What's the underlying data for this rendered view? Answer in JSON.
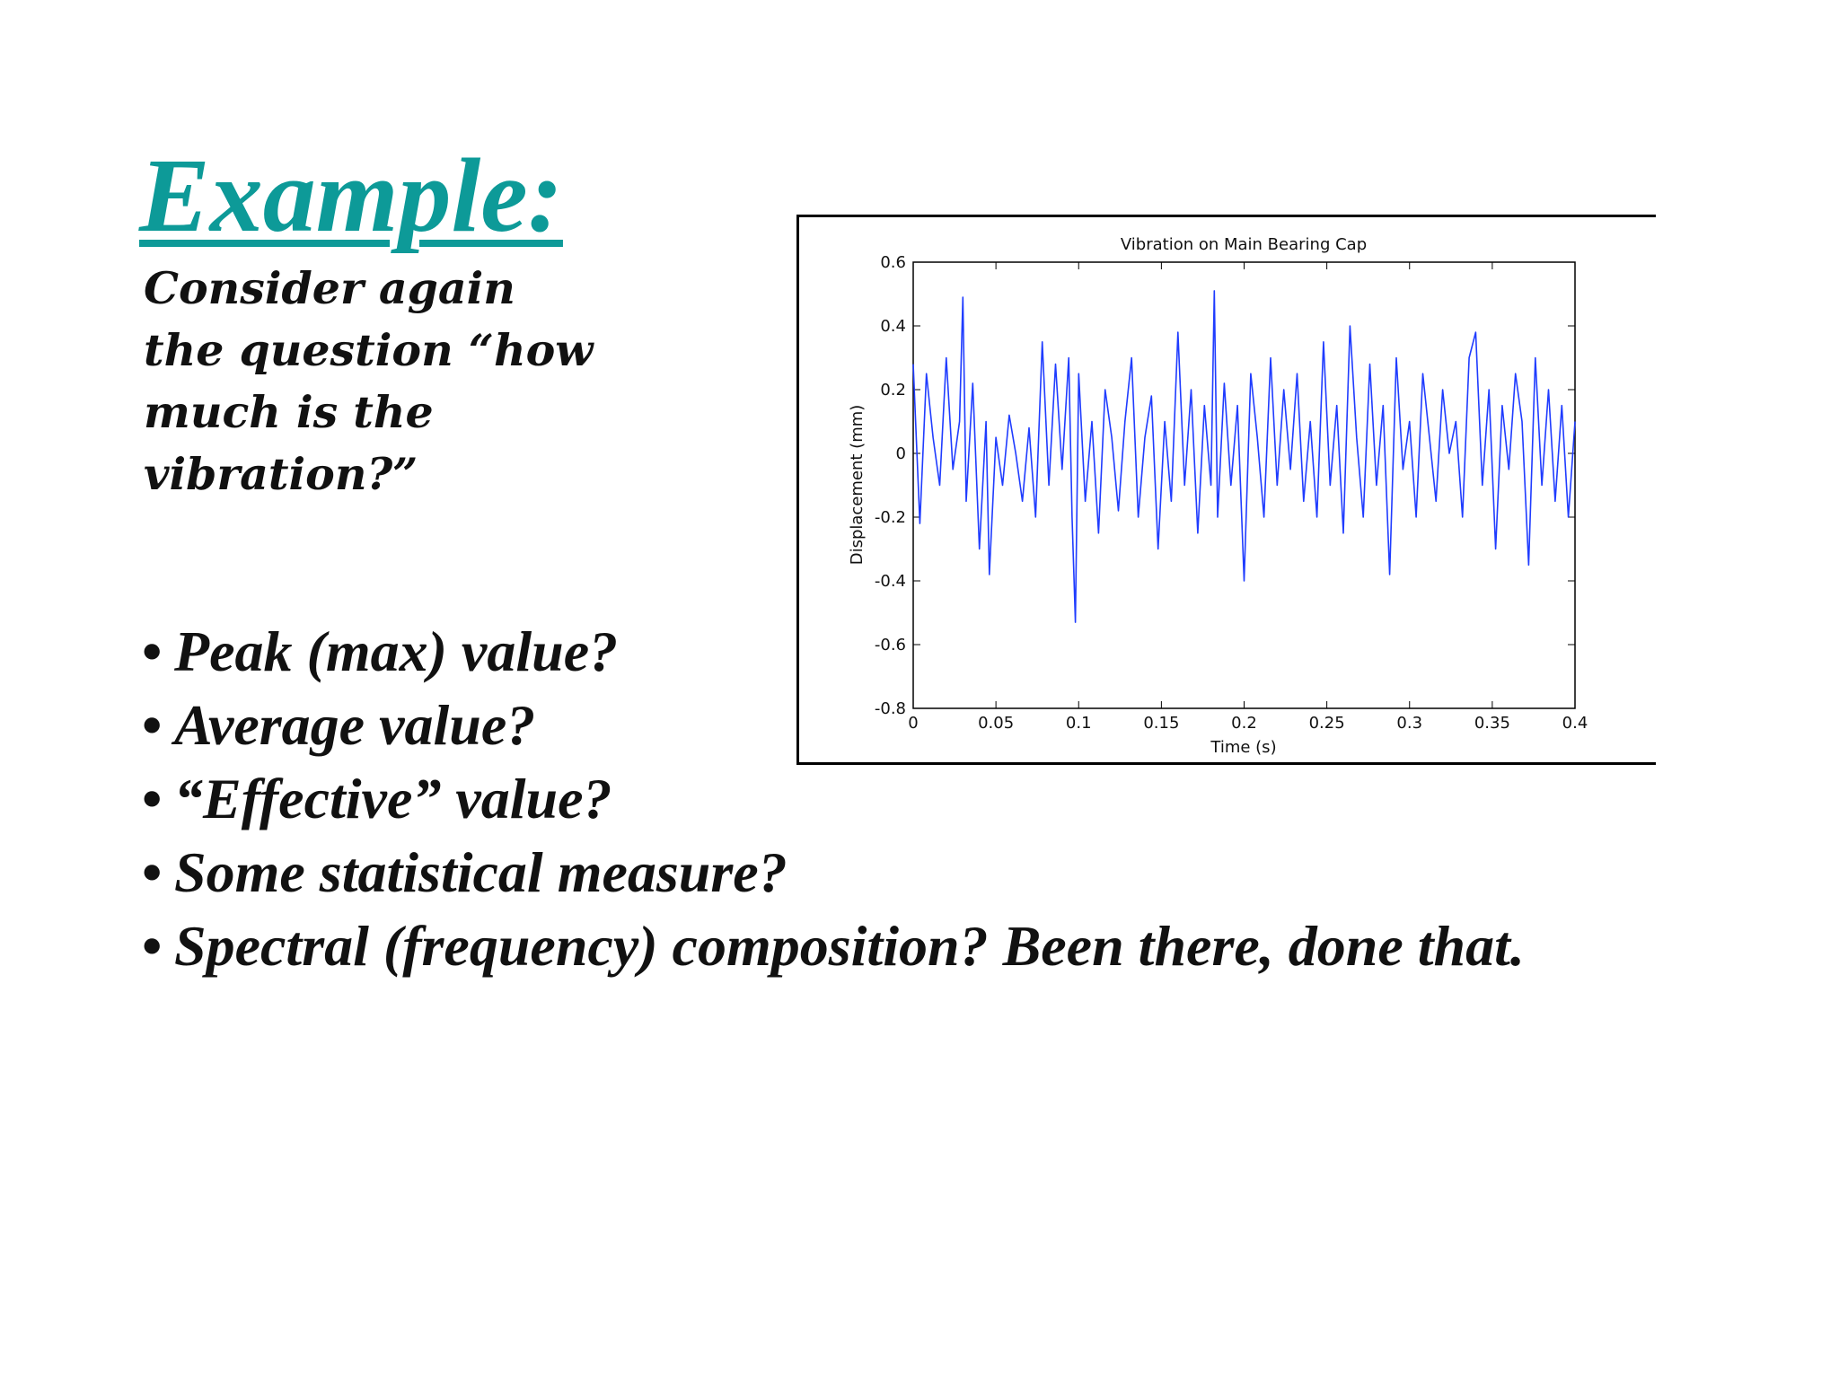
{
  "slide": {
    "title": "Example:",
    "intro_lines": [
      "Consider again",
      "the question “how",
      "much is the",
      "vibration?”"
    ],
    "bullets": [
      "Peak (max) value?",
      "Average value?",
      "“Effective” value?",
      "Some statistical measure?",
      "Spectral (frequency) composition? Been there, done that."
    ],
    "bullet_symbol": "•"
  },
  "colors": {
    "title": "#0d9a98",
    "text": "#111111",
    "series": "#1f3cff"
  },
  "chart_data": {
    "type": "line",
    "title": "Vibration on Main Bearing Cap",
    "xlabel": "Time (s)",
    "ylabel": "Displacement (mm)",
    "xlim": [
      0,
      0.4
    ],
    "ylim": [
      -0.8,
      0.6
    ],
    "xticks": [
      0,
      0.05,
      0.1,
      0.15,
      0.2,
      0.25,
      0.3,
      0.35,
      0.4
    ],
    "xtick_labels": [
      "0",
      "0.05",
      "0.1",
      "0.15",
      "0.2",
      "0.25",
      "0.3",
      "0.35",
      "0.4"
    ],
    "yticks": [
      -0.8,
      -0.6,
      -0.4,
      -0.2,
      0,
      0.2,
      0.4,
      0.6
    ],
    "ytick_labels": [
      "-0.8",
      "-0.6",
      "-0.4",
      "-0.2",
      "0",
      "0.2",
      "0.4",
      "0.6"
    ],
    "grid": false,
    "series": [
      {
        "x": [
          0,
          0.004,
          0.008,
          0.012,
          0.016,
          0.02,
          0.024,
          0.028,
          0.03,
          0.032,
          0.036,
          0.04,
          0.044,
          0.046,
          0.05,
          0.054,
          0.058,
          0.062,
          0.066,
          0.07,
          0.074,
          0.078,
          0.082,
          0.086,
          0.09,
          0.094,
          0.096,
          0.098,
          0.1,
          0.104,
          0.108,
          0.112,
          0.116,
          0.12,
          0.124,
          0.128,
          0.132,
          0.136,
          0.14,
          0.144,
          0.148,
          0.152,
          0.156,
          0.16,
          0.164,
          0.168,
          0.172,
          0.176,
          0.18,
          0.182,
          0.184,
          0.188,
          0.192,
          0.196,
          0.2,
          0.204,
          0.208,
          0.212,
          0.216,
          0.22,
          0.224,
          0.228,
          0.232,
          0.236,
          0.24,
          0.244,
          0.248,
          0.252,
          0.256,
          0.26,
          0.264,
          0.268,
          0.272,
          0.276,
          0.28,
          0.284,
          0.288,
          0.292,
          0.296,
          0.3,
          0.304,
          0.308,
          0.312,
          0.316,
          0.32,
          0.324,
          0.328,
          0.332,
          0.336,
          0.34,
          0.344,
          0.348,
          0.352,
          0.356,
          0.36,
          0.364,
          0.368,
          0.372,
          0.376,
          0.38,
          0.384,
          0.388,
          0.392,
          0.396,
          0.4
        ],
        "y": [
          0.28,
          -0.22,
          0.25,
          0.05,
          -0.1,
          0.3,
          -0.05,
          0.1,
          0.49,
          -0.15,
          0.22,
          -0.3,
          0.1,
          -0.38,
          0.05,
          -0.1,
          0.12,
          0.0,
          -0.15,
          0.08,
          -0.2,
          0.35,
          -0.1,
          0.28,
          -0.05,
          0.3,
          -0.2,
          -0.53,
          0.25,
          -0.15,
          0.1,
          -0.25,
          0.2,
          0.05,
          -0.18,
          0.1,
          0.3,
          -0.2,
          0.05,
          0.18,
          -0.3,
          0.1,
          -0.15,
          0.38,
          -0.1,
          0.2,
          -0.25,
          0.15,
          -0.1,
          0.51,
          -0.2,
          0.22,
          -0.1,
          0.15,
          -0.4,
          0.25,
          0.05,
          -0.2,
          0.3,
          -0.1,
          0.2,
          -0.05,
          0.25,
          -0.15,
          0.1,
          -0.2,
          0.35,
          -0.1,
          0.15,
          -0.25,
          0.4,
          0.05,
          -0.2,
          0.28,
          -0.1,
          0.15,
          -0.38,
          0.3,
          -0.05,
          0.1,
          -0.2,
          0.25,
          0.05,
          -0.15,
          0.2,
          0.0,
          0.1,
          -0.2,
          0.3,
          0.38,
          -0.1,
          0.2,
          -0.3,
          0.15,
          -0.05,
          0.25,
          0.1,
          -0.35,
          0.3,
          -0.1,
          0.2,
          -0.15,
          0.15,
          -0.2,
          0.1
        ]
      }
    ]
  }
}
